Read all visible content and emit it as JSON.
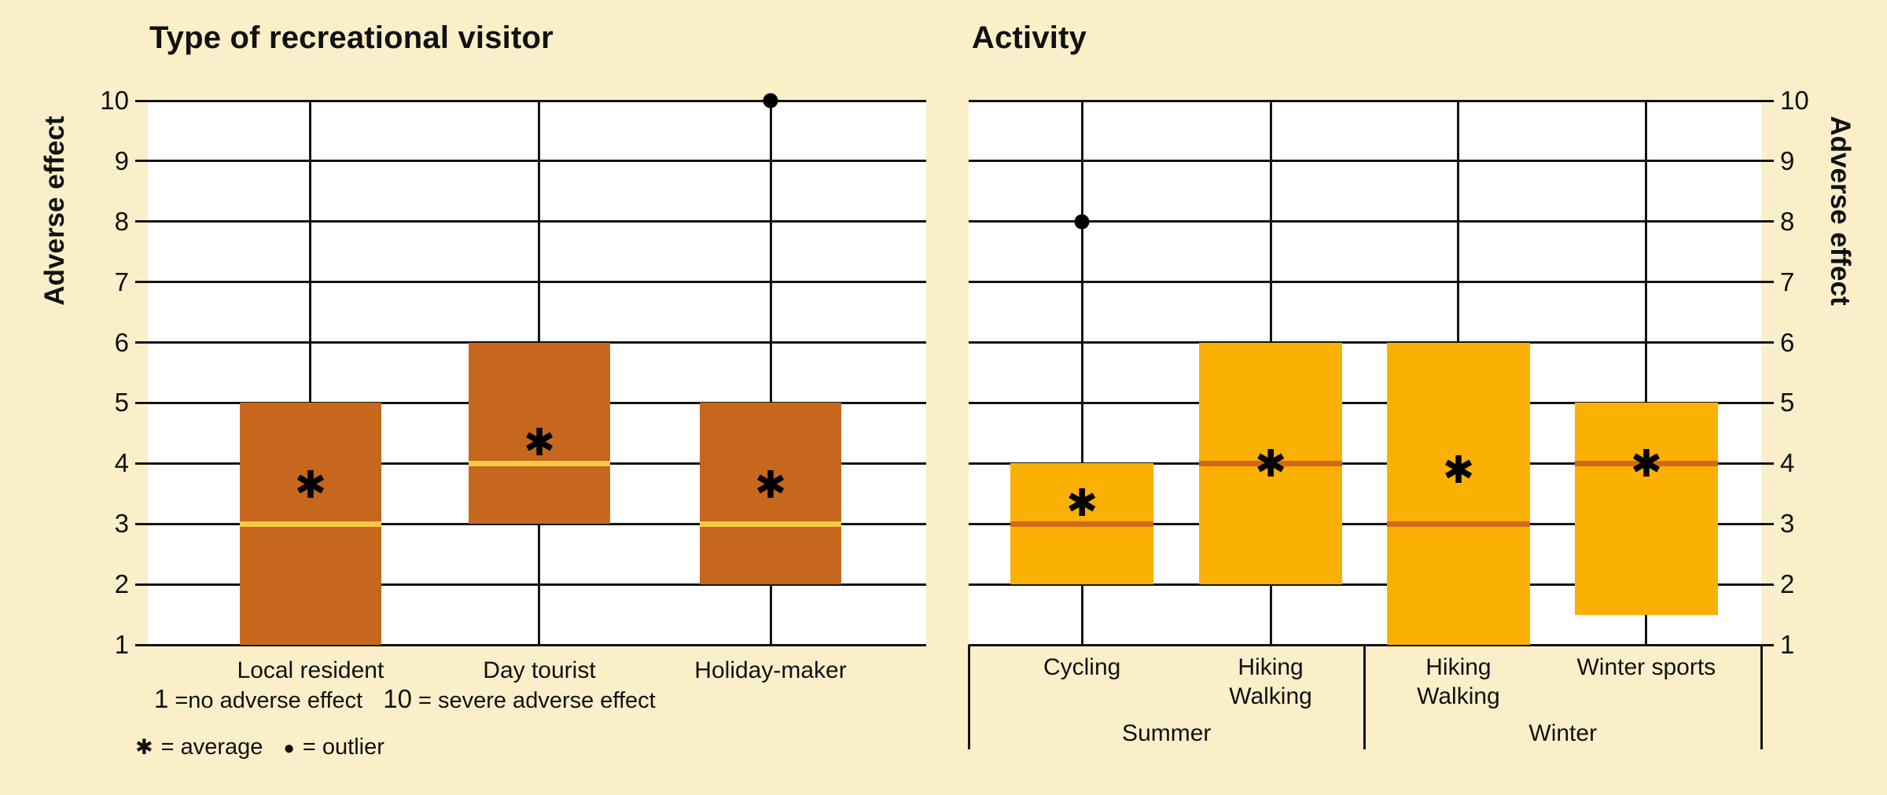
{
  "colors": {
    "background": "#FAEFC9",
    "plot_background": "#FFFFFF",
    "line": "#141414",
    "left_box": "#C7671E",
    "left_median": "#F8C944",
    "right_box": "#FBB004",
    "right_median": "#D2691A"
  },
  "chart_data": [
    {
      "type": "boxplot",
      "title": "Type of recreational visitor",
      "ylabel": "Adverse effect",
      "ylim": [
        1,
        10
      ],
      "yticks": [
        10,
        9,
        8,
        7,
        6,
        5,
        4,
        3,
        2,
        1
      ],
      "ticks_side": "left",
      "grid": "on",
      "categories": [
        [
          "Local resident"
        ],
        [
          "Day tourist"
        ],
        [
          "Holiday-maker"
        ]
      ],
      "boxes": [
        {
          "category": "Local resident",
          "q_low": 1,
          "q_high": 5,
          "median": 3,
          "average": 3.6,
          "outliers": []
        },
        {
          "category": "Day tourist",
          "q_low": 3,
          "q_high": 6,
          "median": 4,
          "average": 4.3,
          "outliers": []
        },
        {
          "category": "Holiday-maker",
          "q_low": 2,
          "q_high": 5,
          "median": 3,
          "average": 3.6,
          "outliers": [
            10
          ]
        }
      ],
      "colors": {
        "box": "#C7671E",
        "median": "#F8C944"
      }
    },
    {
      "type": "boxplot",
      "title": "Activity",
      "ylabel": "Adverse effect",
      "ylim": [
        1,
        10
      ],
      "yticks": [
        10,
        9,
        8,
        7,
        6,
        5,
        4,
        3,
        2,
        1
      ],
      "ticks_side": "right",
      "grid": "on",
      "categories": [
        [
          "Cycling"
        ],
        [
          "Hiking",
          "Walking"
        ],
        [
          "Hiking",
          "Walking"
        ],
        [
          "Winter sports"
        ]
      ],
      "groups": [
        {
          "label": "Summer",
          "from": 0,
          "to": 1
        },
        {
          "label": "Winter",
          "from": 2,
          "to": 3
        }
      ],
      "boxes": [
        {
          "category": "Cycling",
          "q_low": 2,
          "q_high": 4,
          "median": 3,
          "average": 3.3,
          "outliers": [
            8
          ]
        },
        {
          "category": "Hiking Walking",
          "q_low": 2,
          "q_high": 6,
          "median": 4,
          "average": 3.95,
          "outliers": []
        },
        {
          "category": "Hiking Walking",
          "q_low": 1,
          "q_high": 6,
          "median": 3,
          "average": 3.85,
          "outliers": []
        },
        {
          "category": "Winter sports",
          "q_low": 1.5,
          "q_high": 5,
          "median": 4,
          "average": 3.95,
          "outliers": []
        }
      ],
      "colors": {
        "box": "#FBB004",
        "median": "#D2691A"
      }
    }
  ],
  "footnotes": {
    "scale": [
      {
        "num": "1",
        "text": "=no adverse effect"
      },
      {
        "num": "10",
        "text": "= severe adverse effect"
      }
    ],
    "symbols": [
      {
        "sym": "✱",
        "text": "= average"
      },
      {
        "sym": "●",
        "text": "= outlier"
      }
    ]
  }
}
